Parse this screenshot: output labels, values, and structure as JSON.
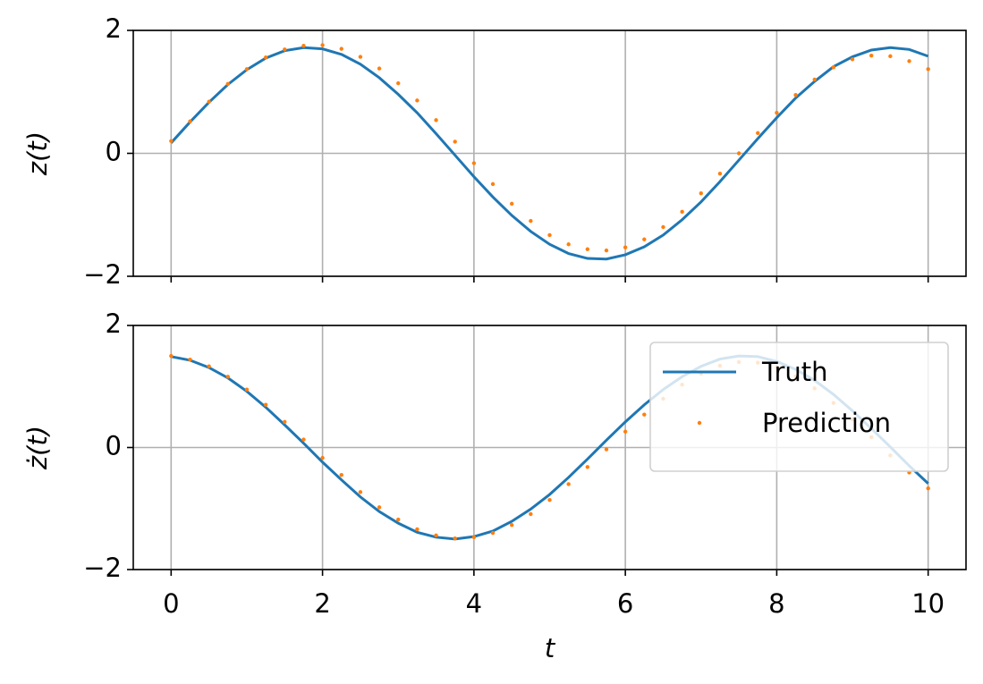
{
  "chart_data": [
    {
      "type": "line",
      "ylabel": "z(t)",
      "x": [
        0,
        0.25,
        0.5,
        0.75,
        1,
        1.25,
        1.5,
        1.75,
        2,
        2.25,
        2.5,
        2.75,
        3,
        3.25,
        3.5,
        3.75,
        4,
        4.25,
        4.5,
        4.75,
        5,
        5.25,
        5.5,
        5.75,
        6,
        6.25,
        6.5,
        6.75,
        7,
        7.25,
        7.5,
        7.75,
        8,
        8.25,
        8.5,
        8.75,
        9,
        9.25,
        9.5,
        9.75,
        10
      ],
      "series": [
        {
          "color": "#1f77b4",
          "style": "line",
          "values": [
            0.17,
            0.51,
            0.83,
            1.12,
            1.36,
            1.55,
            1.67,
            1.72,
            1.7,
            1.61,
            1.45,
            1.23,
            0.96,
            0.66,
            0.32,
            -0.03,
            -0.38,
            -0.71,
            -1.01,
            -1.27,
            -1.48,
            -1.63,
            -1.71,
            -1.72,
            -1.65,
            -1.52,
            -1.33,
            -1.08,
            -0.79,
            -0.46,
            -0.11,
            0.24,
            0.58,
            0.9,
            1.17,
            1.41,
            1.57,
            1.68,
            1.72,
            1.69,
            1.58
          ]
        },
        {
          "color": "#ff7f0e",
          "style": "dots",
          "values": [
            0.2,
            0.52,
            0.84,
            1.13,
            1.37,
            1.56,
            1.69,
            1.75,
            1.76,
            1.7,
            1.57,
            1.38,
            1.14,
            0.86,
            0.54,
            0.19,
            -0.16,
            -0.5,
            -0.82,
            -1.1,
            -1.33,
            -1.48,
            -1.56,
            -1.58,
            -1.53,
            -1.4,
            -1.2,
            -0.95,
            -0.65,
            -0.33,
            0.0,
            0.33,
            0.66,
            0.95,
            1.2,
            1.4,
            1.53,
            1.59,
            1.58,
            1.5,
            1.37
          ]
        }
      ],
      "xlim": [
        -0.5,
        10.5
      ],
      "xticks": [
        0,
        2,
        4,
        6,
        8,
        10
      ],
      "ylim": [
        -2,
        2
      ],
      "yticks": [
        {
          "value": -2,
          "label": "−2"
        },
        0,
        2
      ],
      "grid": true
    },
    {
      "type": "line",
      "ylabel": "ż(t)",
      "xlabel": "t",
      "x": [
        0,
        0.25,
        0.5,
        0.75,
        1,
        1.25,
        1.5,
        1.75,
        2,
        2.25,
        2.5,
        2.75,
        3,
        3.25,
        3.5,
        3.75,
        4,
        4.25,
        4.5,
        4.75,
        5,
        5.25,
        5.5,
        5.75,
        6,
        6.25,
        6.5,
        6.75,
        7,
        7.25,
        7.5,
        7.75,
        8,
        8.25,
        8.5,
        8.75,
        9,
        9.25,
        9.5,
        9.75,
        10
      ],
      "series": [
        {
          "name": "Truth",
          "color": "#1f77b4",
          "style": "line",
          "values": [
            1.49,
            1.43,
            1.31,
            1.14,
            0.92,
            0.66,
            0.37,
            0.07,
            -0.24,
            -0.53,
            -0.81,
            -1.05,
            -1.24,
            -1.39,
            -1.47,
            -1.5,
            -1.46,
            -1.37,
            -1.21,
            -1.01,
            -0.77,
            -0.49,
            -0.19,
            0.12,
            0.42,
            0.7,
            0.95,
            1.16,
            1.33,
            1.45,
            1.5,
            1.49,
            1.41,
            1.28,
            1.1,
            0.87,
            0.6,
            0.31,
            0.01,
            -0.3,
            -0.59
          ]
        },
        {
          "name": "Prediction",
          "color": "#ff7f0e",
          "style": "dots",
          "values": [
            1.5,
            1.44,
            1.33,
            1.16,
            0.95,
            0.7,
            0.42,
            0.13,
            -0.17,
            -0.45,
            -0.73,
            -0.98,
            -1.18,
            -1.34,
            -1.44,
            -1.49,
            -1.47,
            -1.4,
            -1.27,
            -1.09,
            -0.86,
            -0.6,
            -0.32,
            -0.03,
            0.26,
            0.54,
            0.8,
            1.03,
            1.21,
            1.34,
            1.4,
            1.39,
            1.31,
            1.17,
            0.97,
            0.73,
            0.46,
            0.17,
            -0.13,
            -0.41,
            -0.67
          ]
        }
      ],
      "xlim": [
        -0.5,
        10.5
      ],
      "xticks": [
        0,
        2,
        4,
        6,
        8,
        10
      ],
      "ylim": [
        -2,
        2
      ],
      "yticks": [
        {
          "value": -2,
          "label": "−2"
        },
        0,
        2
      ],
      "grid": true,
      "legend": "upper right"
    }
  ]
}
